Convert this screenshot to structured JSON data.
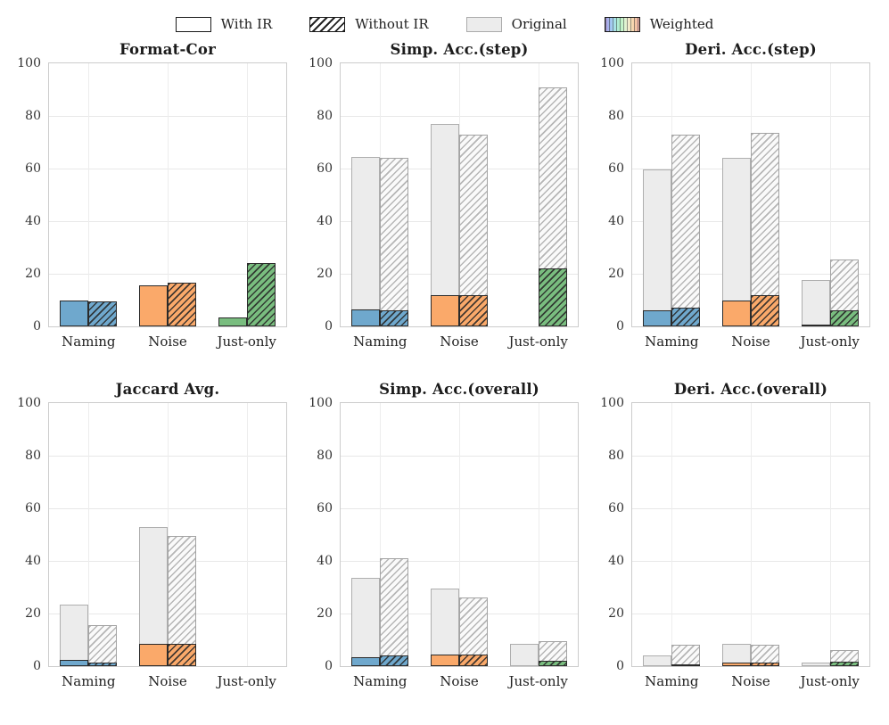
{
  "legend": {
    "items": [
      {
        "label": "With IR",
        "swatch": "with-ir"
      },
      {
        "label": "Without IR",
        "swatch": "without-ir"
      },
      {
        "label": "Original",
        "swatch": "original"
      },
      {
        "label": "Weighted",
        "swatch": "weighted"
      }
    ]
  },
  "colors": {
    "category_fills": [
      "#6fa8cd",
      "#faa96a",
      "#79bd7f"
    ],
    "original_fill": "#ececec",
    "bar_edge_dark": "#2a2a2a",
    "bar_edge_gray": "#aeaeae",
    "spine": "#cccccc",
    "gridline": "#e8e8e8"
  },
  "axis": {
    "yticks": [
      0,
      20,
      40,
      60,
      80,
      100
    ],
    "ylim": [
      0,
      100
    ],
    "categories": [
      "Naming",
      "Noise",
      "Just-only"
    ]
  },
  "chart_data": [
    {
      "type": "bar",
      "title": "Format-Cor",
      "categories": [
        "Naming",
        "Noise",
        "Just-only"
      ],
      "ylim": [
        0,
        100
      ],
      "series": {
        "original": {
          "with_ir": [
            0,
            0,
            0
          ],
          "without_ir": [
            0,
            0,
            0
          ]
        },
        "weighted": {
          "with_ir": [
            10,
            15.5,
            3.5
          ],
          "without_ir": [
            9.5,
            16.5,
            24
          ]
        }
      }
    },
    {
      "type": "bar",
      "title": "Simp. Acc.(step)",
      "categories": [
        "Naming",
        "Noise",
        "Just-only"
      ],
      "ylim": [
        0,
        100
      ],
      "series": {
        "original": {
          "with_ir": [
            64.5,
            77,
            0
          ],
          "without_ir": [
            64,
            73,
            91
          ]
        },
        "weighted": {
          "with_ir": [
            6.5,
            12,
            0
          ],
          "without_ir": [
            6,
            12,
            22
          ]
        }
      }
    },
    {
      "type": "bar",
      "title": "Deri. Acc.(step)",
      "categories": [
        "Naming",
        "Noise",
        "Just-only"
      ],
      "ylim": [
        0,
        100
      ],
      "series": {
        "original": {
          "with_ir": [
            59.5,
            64,
            17.5
          ],
          "without_ir": [
            73,
            73.5,
            25.5
          ]
        },
        "weighted": {
          "with_ir": [
            6,
            10,
            0.7
          ],
          "without_ir": [
            7,
            12,
            6
          ]
        }
      }
    },
    {
      "type": "bar",
      "title": "Jaccard Avg.",
      "categories": [
        "Naming",
        "Noise",
        "Just-only"
      ],
      "ylim": [
        0,
        100
      ],
      "series": {
        "original": {
          "with_ir": [
            23.5,
            53,
            0
          ],
          "without_ir": [
            15.5,
            49.5,
            0
          ]
        },
        "weighted": {
          "with_ir": [
            2.5,
            8.5,
            0
          ],
          "without_ir": [
            1.5,
            8.5,
            0
          ]
        }
      }
    },
    {
      "type": "bar",
      "title": "Simp. Acc.(overall)",
      "categories": [
        "Naming",
        "Noise",
        "Just-only"
      ],
      "ylim": [
        0,
        100
      ],
      "series": {
        "original": {
          "with_ir": [
            33.5,
            29.5,
            8.5
          ],
          "without_ir": [
            41,
            26,
            9.5
          ]
        },
        "weighted": {
          "with_ir": [
            3.5,
            4.5,
            0
          ],
          "without_ir": [
            4,
            4.5,
            2.2
          ]
        }
      }
    },
    {
      "type": "bar",
      "title": "Deri. Acc.(overall)",
      "categories": [
        "Naming",
        "Noise",
        "Just-only"
      ],
      "ylim": [
        0,
        100
      ],
      "series": {
        "original": {
          "with_ir": [
            4,
            8.5,
            1.5
          ],
          "without_ir": [
            8,
            8,
            6
          ]
        },
        "weighted": {
          "with_ir": [
            0,
            1.5,
            0
          ],
          "without_ir": [
            0.8,
            1.5,
            1.8
          ]
        }
      }
    }
  ]
}
